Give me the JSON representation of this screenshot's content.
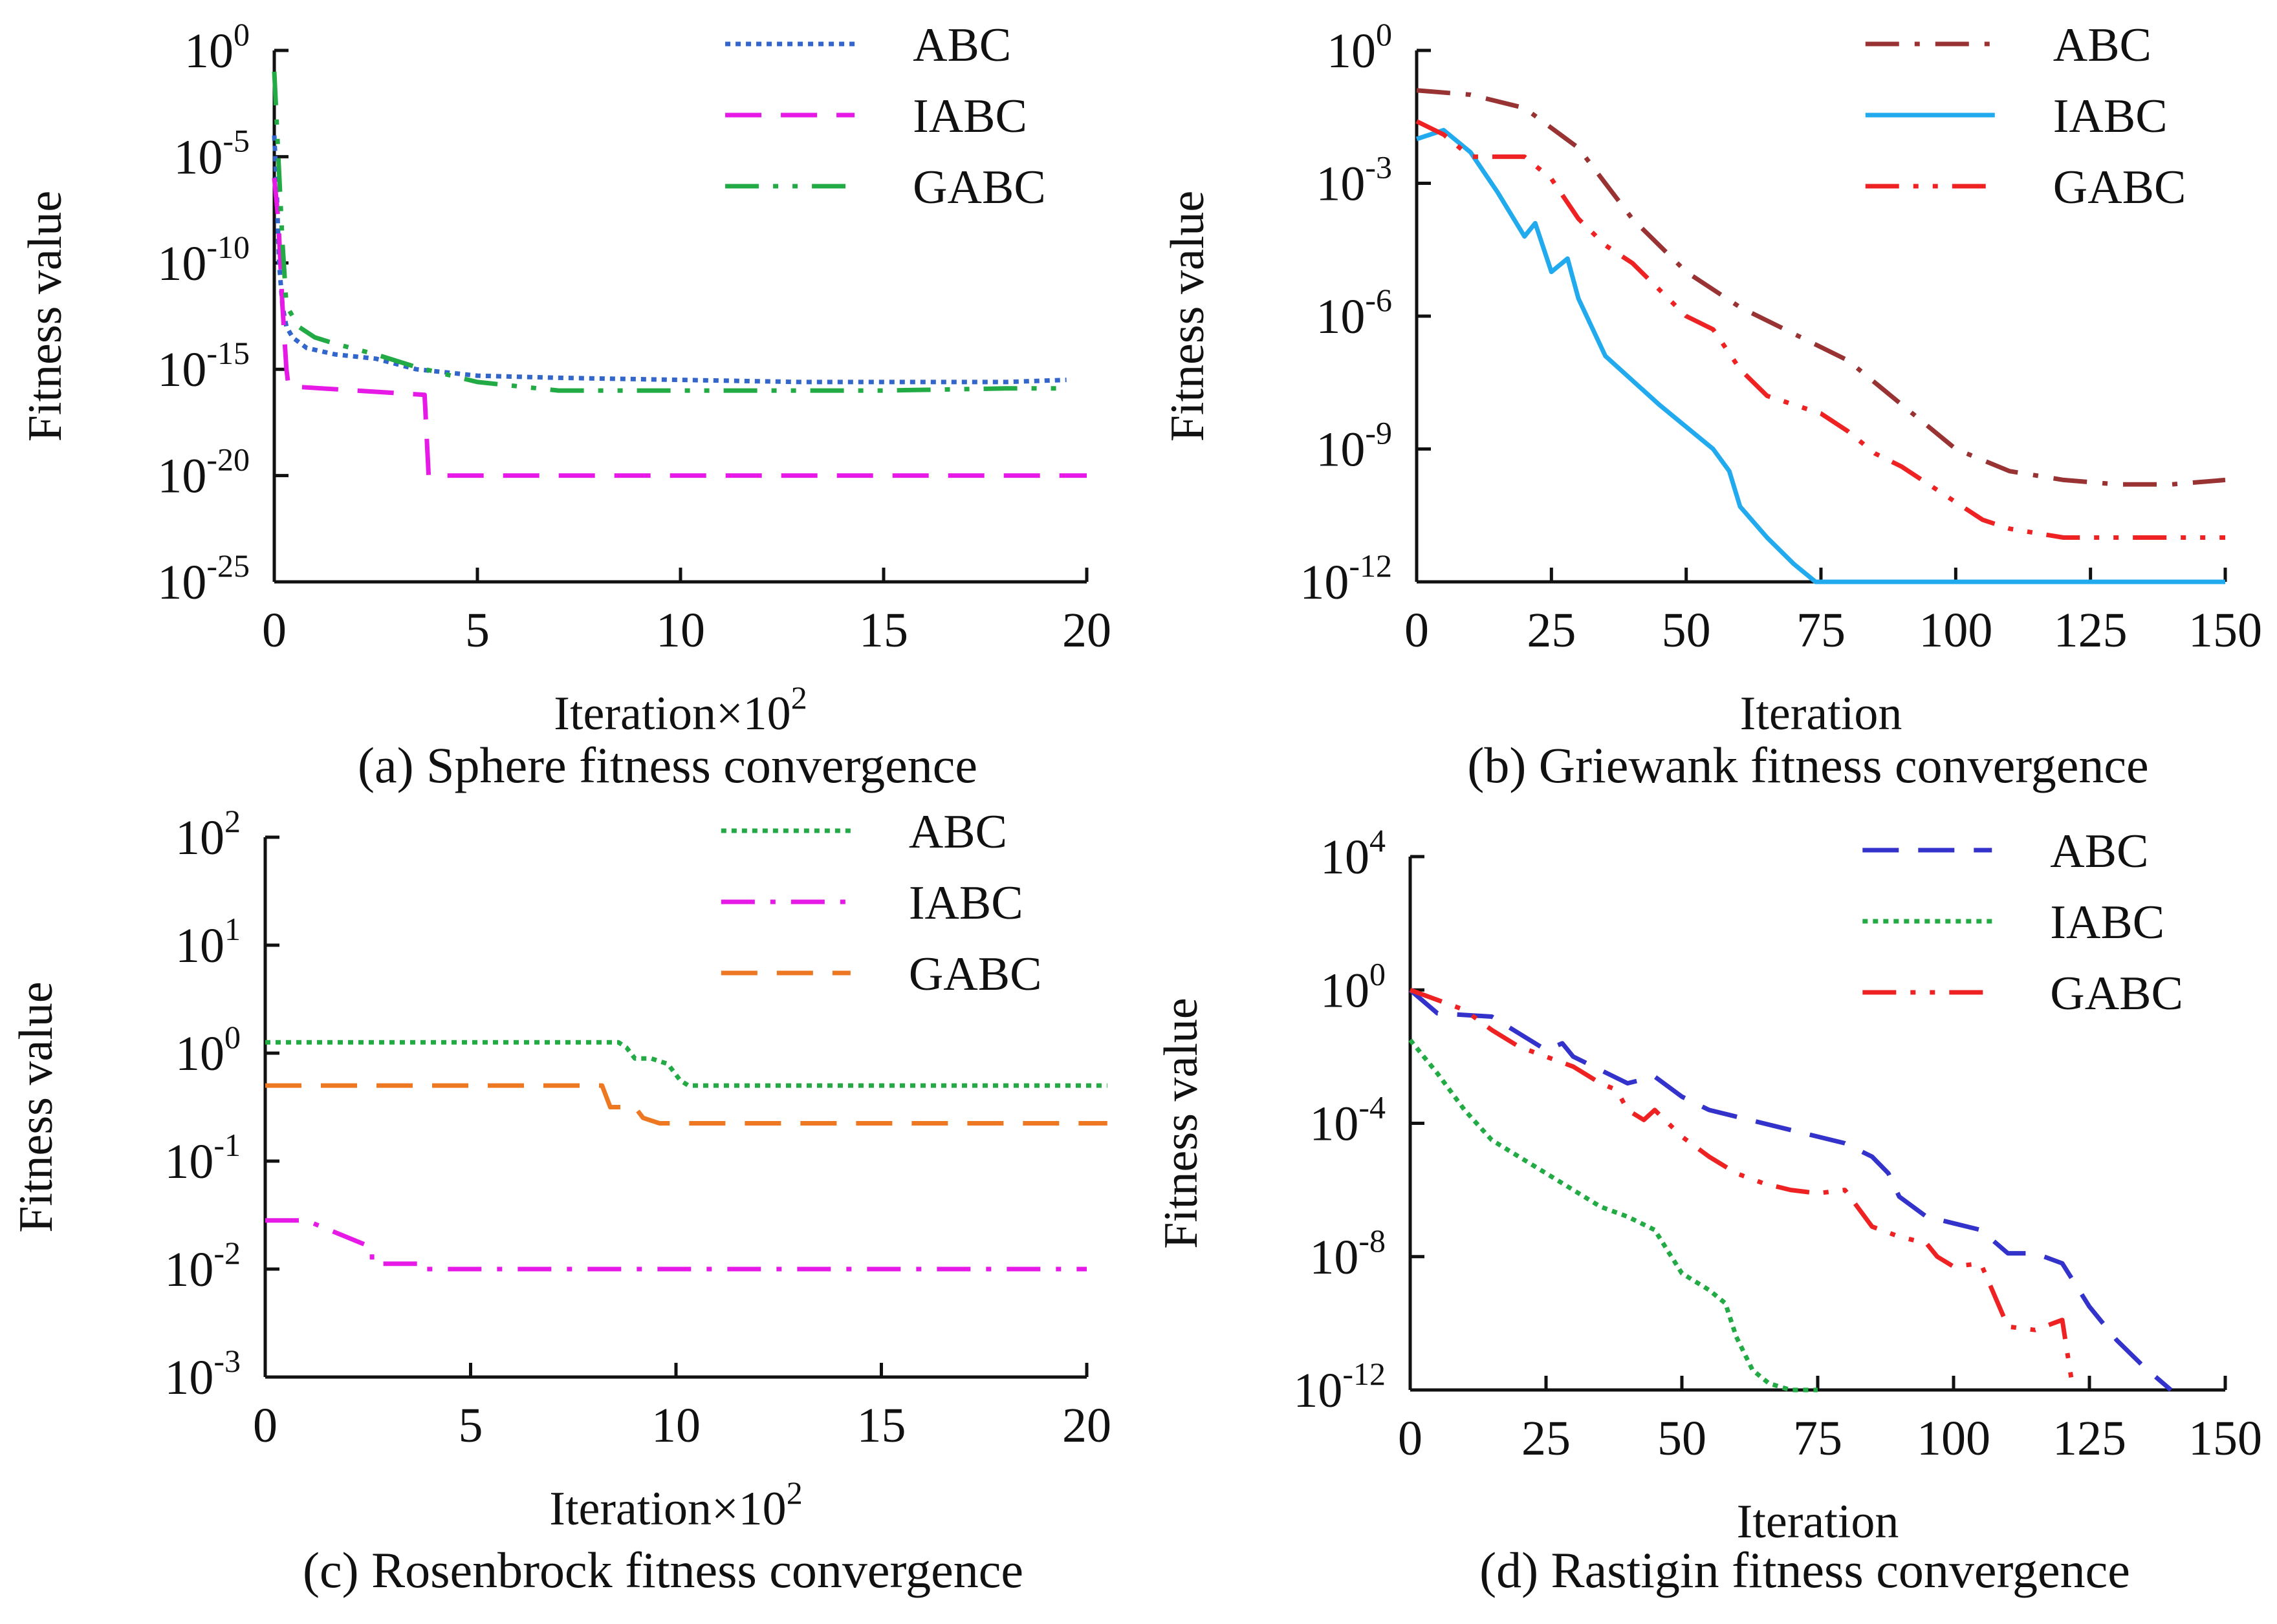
{
  "chart_data": [
    {
      "type": "line",
      "title": "(a) Sphere fitness convergence",
      "xlabel": "Iteration×10",
      "xlabel_exp": "2",
      "ylabel": "Fitness value",
      "yscale": "log",
      "xlim": [
        0,
        20
      ],
      "ylim_exp": [
        -25,
        0
      ],
      "xticks": [
        "0",
        "5",
        "10",
        "15",
        "20"
      ],
      "yticks": [
        {
          "base": "10",
          "exp": "0"
        },
        {
          "base": "10",
          "exp": "-5"
        },
        {
          "base": "10",
          "exp": "-10"
        },
        {
          "base": "10",
          "exp": "-15"
        },
        {
          "base": "10",
          "exp": "-20"
        },
        {
          "base": "10",
          "exp": "-25"
        }
      ],
      "legend_position": "top-right",
      "series": [
        {
          "name": "ABC",
          "color": "#3366cc",
          "dash": "dot",
          "x": [
            0,
            0.05,
            0.12,
            0.2,
            0.3,
            0.45,
            0.8,
            1.5,
            2.5,
            3.5,
            5,
            7,
            10,
            13,
            15,
            18,
            19.5
          ],
          "log_y": [
            -4,
            -6,
            -10,
            -12,
            -13,
            -13.5,
            -14,
            -14.3,
            -14.5,
            -15,
            -15.3,
            -15.4,
            -15.5,
            -15.6,
            -15.6,
            -15.6,
            -15.5
          ]
        },
        {
          "name": "IABC",
          "color": "#e619e6",
          "dash": "longdash",
          "x": [
            0,
            0.1,
            0.2,
            0.3,
            0.35,
            3.7,
            3.8,
            5,
            10,
            15,
            20
          ],
          "log_y": [
            -6,
            -8,
            -12,
            -15,
            -15.8,
            -16.2,
            -20,
            -20,
            -20,
            -20,
            -20
          ]
        },
        {
          "name": "GABC",
          "color": "#22aa44",
          "dash": "dashdotdot",
          "x": [
            0,
            0.1,
            0.2,
            0.3,
            0.6,
            1,
            1.5,
            2.5,
            3.5,
            5,
            7,
            10,
            13,
            15,
            18,
            19.5
          ],
          "log_y": [
            -1,
            -5,
            -9,
            -12,
            -13,
            -13.5,
            -13.8,
            -14.3,
            -14.9,
            -15.6,
            -16,
            -16,
            -16,
            -16,
            -15.9,
            -15.9
          ]
        }
      ]
    },
    {
      "type": "line",
      "title": "(b) Griewank fitness convergence",
      "xlabel": "Iteration",
      "xlabel_exp": "",
      "ylabel": "Fitness value",
      "yscale": "log",
      "xlim": [
        0,
        150
      ],
      "ylim_exp": [
        -12,
        0
      ],
      "xticks": [
        "0",
        "25",
        "50",
        "75",
        "100",
        "125",
        "150"
      ],
      "yticks": [
        {
          "base": "10",
          "exp": "0"
        },
        {
          "base": "10",
          "exp": "-3"
        },
        {
          "base": "10",
          "exp": "-6"
        },
        {
          "base": "10",
          "exp": "-9"
        },
        {
          "base": "10",
          "exp": "-12"
        }
      ],
      "legend_position": "top-right",
      "series": [
        {
          "name": "ABC",
          "color": "#993333",
          "dash": "dashdot",
          "x": [
            0,
            10,
            20,
            30,
            40,
            50,
            60,
            70,
            80,
            90,
            100,
            110,
            120,
            130,
            140,
            150
          ],
          "log_y": [
            -0.9,
            -1.0,
            -1.3,
            -2.2,
            -3.8,
            -5.0,
            -5.8,
            -6.4,
            -7.0,
            -8.0,
            -9.0,
            -9.5,
            -9.7,
            -9.8,
            -9.8,
            -9.7
          ]
        },
        {
          "name": "IABC",
          "color": "#22aaee",
          "dash": "solid",
          "x": [
            0,
            5,
            10,
            15,
            20,
            22,
            25,
            28,
            30,
            35,
            45,
            55,
            58,
            60,
            65,
            70,
            74,
            76,
            100,
            125,
            150
          ],
          "log_y": [
            -2.0,
            -1.8,
            -2.3,
            -3.2,
            -4.2,
            -3.9,
            -5.0,
            -4.7,
            -5.6,
            -6.9,
            -8.0,
            -9.0,
            -9.5,
            -10.3,
            -11.0,
            -11.6,
            -12.0,
            -12.0,
            -12.0,
            -12.0,
            -12.0
          ]
        },
        {
          "name": "GABC",
          "color": "#ee2222",
          "dash": "dashdotdot",
          "x": [
            0,
            5,
            10,
            15,
            20,
            25,
            30,
            35,
            40,
            45,
            50,
            55,
            60,
            65,
            70,
            75,
            80,
            85,
            90,
            95,
            100,
            105,
            110,
            120,
            130,
            150
          ],
          "log_y": [
            -1.6,
            -1.9,
            -2.4,
            -2.4,
            -2.4,
            -2.9,
            -3.8,
            -4.4,
            -4.8,
            -5.4,
            -6.0,
            -6.3,
            -7.2,
            -7.8,
            -8.0,
            -8.2,
            -8.6,
            -9.1,
            -9.4,
            -9.8,
            -10.2,
            -10.6,
            -10.8,
            -11.0,
            -11.0,
            -11.0
          ]
        }
      ]
    },
    {
      "type": "line",
      "title": "(c) Rosenbrock fitness convergence",
      "xlabel": "Iteration×10",
      "xlabel_exp": "2",
      "ylabel": "Fitness value",
      "yscale": "log",
      "xlim": [
        0,
        20
      ],
      "ylim_exp": [
        -3,
        2
      ],
      "xticks": [
        "0",
        "5",
        "10",
        "15",
        "20"
      ],
      "yticks": [
        {
          "base": "10",
          "exp": "2"
        },
        {
          "base": "10",
          "exp": "1"
        },
        {
          "base": "10",
          "exp": "0"
        },
        {
          "base": "10",
          "exp": "-1"
        },
        {
          "base": "10",
          "exp": "-2"
        },
        {
          "base": "10",
          "exp": "-3"
        }
      ],
      "legend_position": "top-right",
      "series": [
        {
          "name": "ABC",
          "color": "#22aa44",
          "dash": "dot",
          "x": [
            0,
            8.6,
            8.8,
            9.0,
            9.4,
            9.8,
            10.1,
            10.3,
            15,
            20.5
          ],
          "log_y": [
            0.1,
            0.1,
            0.05,
            -0.05,
            -0.05,
            -0.1,
            -0.25,
            -0.3,
            -0.3,
            -0.3
          ]
        },
        {
          "name": "IABC",
          "color": "#e619e6",
          "dash": "dashdot",
          "x": [
            0,
            1,
            2.6,
            2.6,
            3.8,
            3.8,
            10,
            20
          ],
          "log_y": [
            -1.55,
            -1.55,
            -1.8,
            -1.95,
            -1.95,
            -2.0,
            -2.0,
            -2.0
          ]
        },
        {
          "name": "GABC",
          "color": "#ee7722",
          "dash": "longdash",
          "x": [
            0,
            8.2,
            8.4,
            9.0,
            9.2,
            9.6,
            10.5,
            15,
            20.5
          ],
          "log_y": [
            -0.3,
            -0.3,
            -0.5,
            -0.5,
            -0.6,
            -0.65,
            -0.65,
            -0.65,
            -0.65
          ]
        }
      ]
    },
    {
      "type": "line",
      "title": "(d) Rastigin fitness convergence",
      "xlabel": "Iteration",
      "xlabel_exp": "",
      "ylabel": "Fitness value",
      "yscale": "log",
      "xlim": [
        0,
        150
      ],
      "ylim_exp": [
        -12,
        4
      ],
      "xticks": [
        "0",
        "25",
        "50",
        "75",
        "100",
        "125",
        "150"
      ],
      "yticks": [
        {
          "base": "10",
          "exp": "4"
        },
        {
          "base": "10",
          "exp": "0"
        },
        {
          "base": "10",
          "exp": "-4"
        },
        {
          "base": "10",
          "exp": "-8"
        },
        {
          "base": "10",
          "exp": "-12"
        }
      ],
      "legend_position": "top-right",
      "series": [
        {
          "name": "ABC",
          "color": "#3333cc",
          "dash": "longdash",
          "x": [
            0,
            5,
            15,
            20,
            25,
            28,
            30,
            35,
            40,
            45,
            50,
            55,
            60,
            70,
            80,
            85,
            88,
            90,
            95,
            100,
            105,
            110,
            115,
            120,
            125,
            130,
            135,
            140
          ],
          "log_y": [
            0,
            -0.7,
            -0.8,
            -1.3,
            -1.8,
            -1.6,
            -2.0,
            -2.4,
            -2.8,
            -2.6,
            -3.2,
            -3.6,
            -3.8,
            -4.2,
            -4.6,
            -5.0,
            -5.5,
            -6.2,
            -6.8,
            -7.0,
            -7.2,
            -7.9,
            -7.9,
            -8.2,
            -9.5,
            -10.5,
            -11.3,
            -12.0
          ]
        },
        {
          "name": "IABC",
          "color": "#22aa44",
          "dash": "dot",
          "x": [
            0,
            5,
            10,
            15,
            20,
            25,
            30,
            35,
            40,
            45,
            50,
            55,
            58,
            60,
            63,
            66,
            70,
            75
          ],
          "log_y": [
            -1.5,
            -2.5,
            -3.6,
            -4.5,
            -5.0,
            -5.5,
            -6.0,
            -6.5,
            -6.8,
            -7.2,
            -8.5,
            -9.0,
            -9.4,
            -10.4,
            -11.4,
            -11.8,
            -12.0,
            -12.0
          ]
        },
        {
          "name": "GABC",
          "color": "#ee2222",
          "dash": "dashdotdot",
          "x": [
            0,
            5,
            10,
            15,
            20,
            25,
            30,
            35,
            38,
            40,
            43,
            45,
            50,
            55,
            60,
            65,
            70,
            75,
            80,
            85,
            90,
            95,
            97,
            100,
            105,
            110,
            115,
            120,
            122
          ],
          "log_y": [
            0,
            -0.3,
            -0.6,
            -1.2,
            -1.7,
            -2.0,
            -2.3,
            -2.8,
            -3.0,
            -3.6,
            -3.9,
            -3.6,
            -4.4,
            -5.0,
            -5.5,
            -5.8,
            -6.0,
            -6.1,
            -6.0,
            -7.1,
            -7.4,
            -7.6,
            -8.0,
            -8.3,
            -8.2,
            -10.1,
            -10.2,
            -9.9,
            -12.0
          ]
        }
      ]
    }
  ]
}
